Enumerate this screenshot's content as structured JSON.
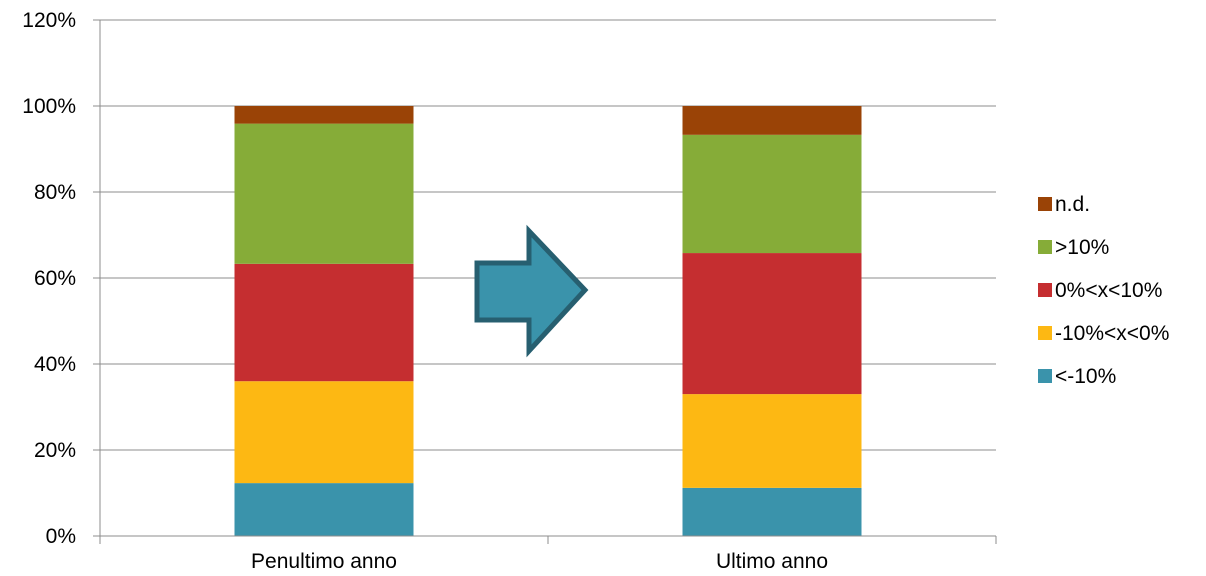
{
  "chart_data": {
    "type": "bar",
    "stacked": true,
    "percent_stacked": true,
    "categories": [
      "Penultimo anno",
      "Ultimo anno"
    ],
    "series": [
      {
        "name": "<-10%",
        "color": "#3A93AB",
        "values": [
          12.3,
          11.2
        ]
      },
      {
        "name": "-10%<x<0%",
        "color": "#FDB813",
        "values": [
          23.7,
          21.8
        ]
      },
      {
        "name": "0%<x<10%",
        "color": "#C52E30",
        "values": [
          27.3,
          32.8
        ]
      },
      {
        "name": ">10%",
        "color": "#86AC38",
        "values": [
          32.6,
          27.5
        ]
      },
      {
        "name": "n.d.",
        "color": "#9A4306",
        "values": [
          4.1,
          6.7
        ]
      }
    ],
    "y_ticks": [
      "0%",
      "20%",
      "40%",
      "60%",
      "80%",
      "100%",
      "120%"
    ],
    "ylim": [
      0,
      120
    ],
    "grid": true,
    "legend_position": "right",
    "legend_order": [
      "n.d.",
      ">10%",
      "0%<x<10%",
      "-10%<x<0%",
      "<-10%"
    ],
    "annotations": [
      {
        "type": "arrow-right",
        "icon": "arrow-right-icon",
        "fill": "#3A93AB",
        "stroke": "#275F70"
      }
    ]
  }
}
